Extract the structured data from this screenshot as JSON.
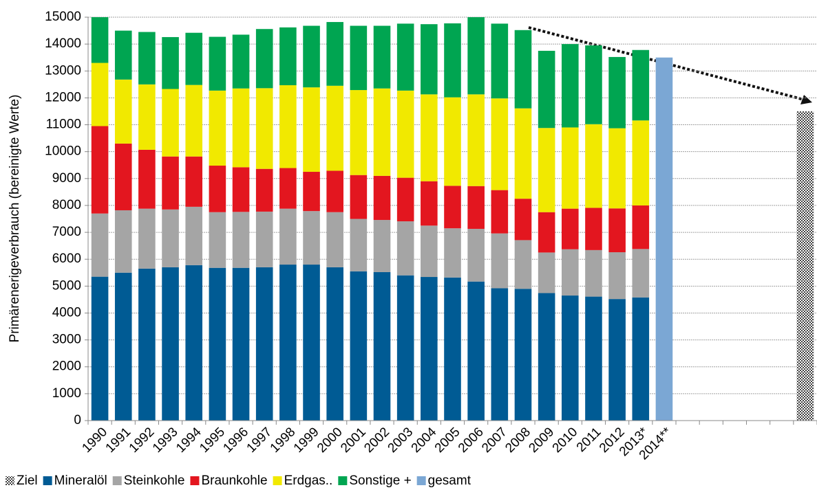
{
  "chart_data": {
    "type": "bar",
    "stacked": true,
    "y_label": "Primärenerigeverbrauch (bereinigte Werte)",
    "categories": [
      "1990",
      "1991",
      "1992",
      "1993",
      "1994",
      "1995",
      "1996",
      "1997",
      "1998",
      "1999",
      "2000",
      "2001",
      "2002",
      "2003",
      "2004",
      "2005",
      "2006",
      "2007",
      "2008",
      "2009",
      "2010",
      "2011",
      "2012",
      "2013*",
      "2014**",
      null,
      null,
      null,
      null,
      null,
      null
    ],
    "series": [
      {
        "name": "Ziel",
        "color": "#404040",
        "pattern": "crosshatch",
        "values": [
          null,
          null,
          null,
          null,
          null,
          null,
          null,
          null,
          null,
          null,
          null,
          null,
          null,
          null,
          null,
          null,
          null,
          null,
          null,
          null,
          null,
          null,
          null,
          null,
          null,
          null,
          null,
          null,
          null,
          null,
          11500
        ]
      },
      {
        "name": "Mineralöl",
        "color": "#005b94",
        "values": [
          5350,
          5500,
          5650,
          5700,
          5780,
          5680,
          5680,
          5700,
          5800,
          5800,
          5700,
          5550,
          5520,
          5400,
          5340,
          5320,
          5170,
          4920,
          4900,
          4740,
          4650,
          4610,
          4520,
          4580,
          null,
          null,
          null,
          null,
          null,
          null,
          null
        ]
      },
      {
        "name": "Steinkohle",
        "color": "#a5a5a5",
        "values": [
          2350,
          2320,
          2230,
          2150,
          2170,
          2070,
          2080,
          2070,
          2080,
          1990,
          2050,
          1950,
          1940,
          2010,
          1910,
          1830,
          1960,
          2040,
          1810,
          1510,
          1720,
          1730,
          1740,
          1800,
          null,
          null,
          null,
          null,
          null,
          null,
          null
        ]
      },
      {
        "name": "Braunkohle",
        "color": "#e3161f",
        "values": [
          3250,
          2480,
          2190,
          1970,
          1870,
          1730,
          1660,
          1590,
          1510,
          1460,
          1540,
          1630,
          1640,
          1620,
          1650,
          1580,
          1590,
          1610,
          1540,
          1500,
          1510,
          1570,
          1630,
          1620,
          null,
          null,
          null,
          null,
          null,
          null,
          null
        ]
      },
      {
        "name": "Erdgas..",
        "color": "#f1e900",
        "values": [
          2350,
          2380,
          2430,
          2510,
          2660,
          2790,
          2930,
          3000,
          3080,
          3140,
          3160,
          3160,
          3250,
          3240,
          3230,
          3290,
          3410,
          3410,
          3360,
          3130,
          3020,
          3110,
          2980,
          3160,
          null,
          null,
          null,
          null,
          null,
          null,
          null
        ]
      },
      {
        "name": "Sonstige +",
        "color": "#00a551",
        "values": [
          1700,
          1820,
          1950,
          1930,
          1940,
          2000,
          2000,
          2200,
          2150,
          2290,
          2370,
          2390,
          2330,
          2490,
          2610,
          2750,
          2870,
          2780,
          2910,
          2870,
          3100,
          2930,
          2650,
          2620,
          null,
          null,
          null,
          null,
          null,
          null,
          null
        ]
      },
      {
        "name": "gesamt",
        "color": "#7ba7d4",
        "values": [
          null,
          null,
          null,
          null,
          null,
          null,
          null,
          null,
          null,
          null,
          null,
          null,
          null,
          null,
          null,
          null,
          null,
          null,
          null,
          null,
          null,
          null,
          null,
          null,
          13500,
          null,
          null,
          null,
          null,
          null,
          null
        ]
      }
    ],
    "ylim": [
      0,
      15000
    ],
    "yticks": [
      0,
      1000,
      2000,
      3000,
      4000,
      5000,
      6000,
      7000,
      8000,
      9000,
      10000,
      11000,
      12000,
      13000,
      14000,
      15000
    ],
    "grid": true,
    "legend": "bottom"
  }
}
